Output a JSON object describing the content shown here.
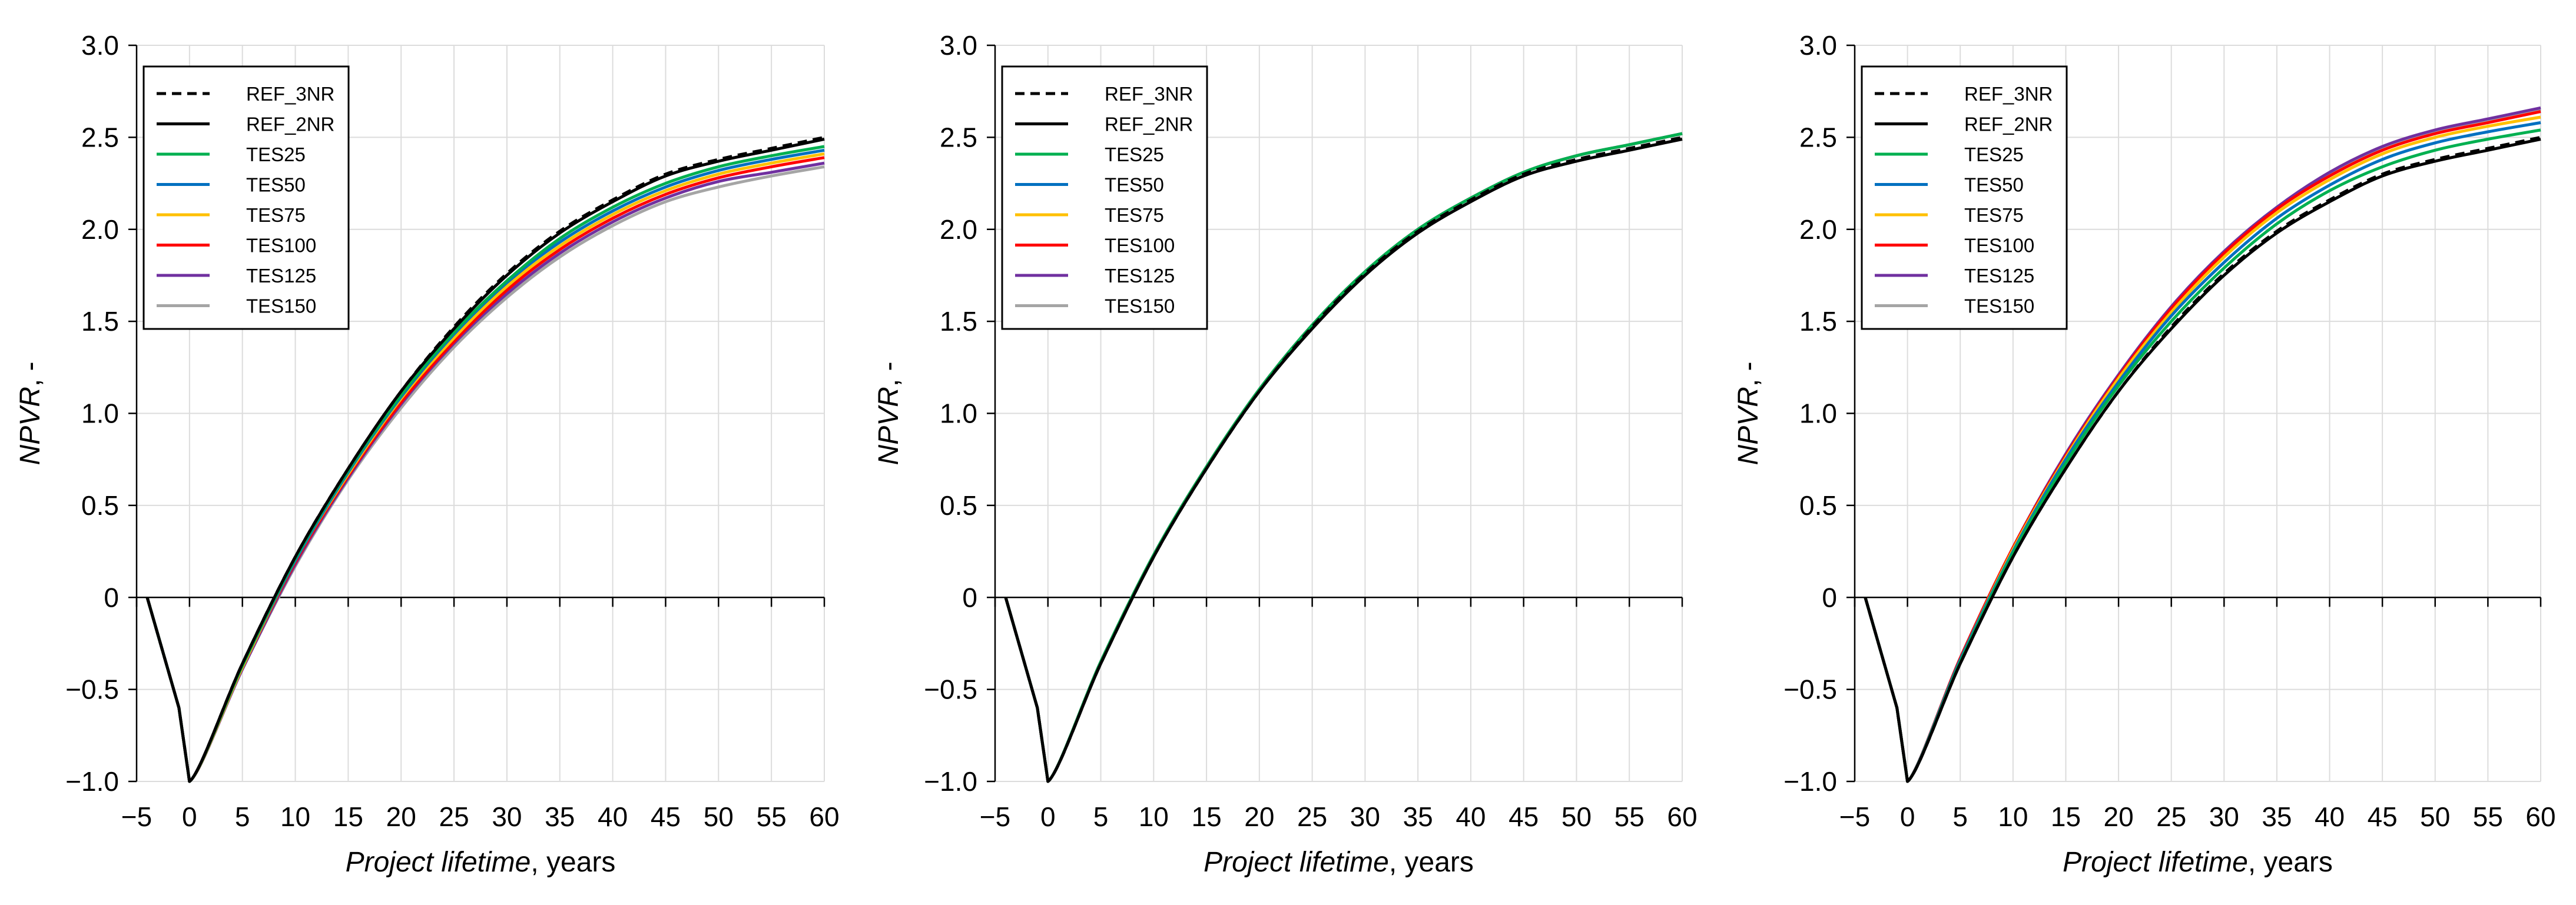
{
  "chart_data": [
    {
      "type": "line",
      "title": "",
      "xlabel": "Project lifetime, years",
      "xlabel_italic": "Project lifetime",
      "xlabel_rest": ", years",
      "ylabel": "NPVR, -",
      "ylabel_italic": "NPVR",
      "ylabel_rest": ", -",
      "xlim": [
        -5,
        60
      ],
      "ylim": [
        -1.0,
        3.0
      ],
      "xticks": [
        -5,
        0,
        5,
        10,
        15,
        20,
        25,
        30,
        35,
        40,
        45,
        50,
        55,
        60
      ],
      "xtick_labels": [
        "−5",
        "0",
        "5",
        "10",
        "15",
        "20",
        "25",
        "30",
        "35",
        "40",
        "45",
        "50",
        "55",
        "60"
      ],
      "yticks": [
        -1.0,
        -0.5,
        0,
        0.5,
        1.0,
        1.5,
        2.0,
        2.5,
        3.0
      ],
      "ytick_labels": [
        "−1.0",
        "−0.5",
        "0",
        "0.5",
        "1.0",
        "1.5",
        "2.0",
        "2.5",
        "3.0"
      ],
      "grid": true,
      "legend_position": "top-left",
      "series": [
        {
          "name": "REF_3NR",
          "color": "#000000",
          "dash": true,
          "x": [
            -4,
            -1,
            0,
            5,
            10,
            15,
            20,
            25,
            30,
            35,
            40,
            45,
            50,
            55,
            60
          ],
          "y": [
            0,
            -0.6,
            -1.0,
            -0.36,
            0.22,
            0.7,
            1.12,
            1.47,
            1.76,
            1.99,
            2.16,
            2.3,
            2.38,
            2.44,
            2.5
          ]
        },
        {
          "name": "REF_2NR",
          "color": "#000000",
          "dash": false,
          "x": [
            -4,
            -1,
            0,
            5,
            10,
            15,
            20,
            25,
            30,
            35,
            40,
            45,
            50,
            55,
            60
          ],
          "y": [
            0,
            -0.6,
            -1.0,
            -0.36,
            0.22,
            0.7,
            1.12,
            1.46,
            1.75,
            1.98,
            2.15,
            2.29,
            2.37,
            2.43,
            2.49
          ]
        },
        {
          "name": "TES25",
          "color": "#00b050",
          "dash": false,
          "x": [
            -4,
            -1,
            0,
            5,
            10,
            15,
            20,
            25,
            30,
            35,
            40,
            45,
            50,
            55,
            60
          ],
          "y": [
            0,
            -0.6,
            -1.0,
            -0.37,
            0.21,
            0.69,
            1.1,
            1.44,
            1.72,
            1.95,
            2.12,
            2.25,
            2.34,
            2.4,
            2.45
          ]
        },
        {
          "name": "TES50",
          "color": "#0070c0",
          "dash": false,
          "x": [
            -4,
            -1,
            0,
            5,
            10,
            15,
            20,
            25,
            30,
            35,
            40,
            45,
            50,
            55,
            60
          ],
          "y": [
            0,
            -0.6,
            -1.0,
            -0.37,
            0.2,
            0.68,
            1.09,
            1.43,
            1.71,
            1.93,
            2.1,
            2.23,
            2.32,
            2.38,
            2.43
          ]
        },
        {
          "name": "TES75",
          "color": "#ffc000",
          "dash": false,
          "x": [
            -4,
            -1,
            0,
            5,
            10,
            15,
            20,
            25,
            30,
            35,
            40,
            45,
            50,
            55,
            60
          ],
          "y": [
            0,
            -0.6,
            -1.0,
            -0.38,
            0.2,
            0.67,
            1.08,
            1.41,
            1.69,
            1.91,
            2.08,
            2.21,
            2.3,
            2.36,
            2.41
          ]
        },
        {
          "name": "TES100",
          "color": "#ff0000",
          "dash": false,
          "x": [
            -4,
            -1,
            0,
            5,
            10,
            15,
            20,
            25,
            30,
            35,
            40,
            45,
            50,
            55,
            60
          ],
          "y": [
            0,
            -0.6,
            -1.0,
            -0.38,
            0.19,
            0.66,
            1.06,
            1.39,
            1.67,
            1.89,
            2.06,
            2.19,
            2.28,
            2.34,
            2.39
          ]
        },
        {
          "name": "TES125",
          "color": "#7030a0",
          "dash": false,
          "x": [
            -4,
            -1,
            0,
            5,
            10,
            15,
            20,
            25,
            30,
            35,
            40,
            45,
            50,
            55,
            60
          ],
          "y": [
            0,
            -0.6,
            -1.0,
            -0.39,
            0.18,
            0.65,
            1.05,
            1.38,
            1.65,
            1.87,
            2.04,
            2.17,
            2.26,
            2.31,
            2.36
          ]
        },
        {
          "name": "TES150",
          "color": "#a5a5a5",
          "dash": false,
          "x": [
            -4,
            -1,
            0,
            5,
            10,
            15,
            20,
            25,
            30,
            35,
            40,
            45,
            50,
            55,
            60
          ],
          "y": [
            0,
            -0.6,
            -1.0,
            -0.39,
            0.17,
            0.64,
            1.03,
            1.36,
            1.63,
            1.85,
            2.02,
            2.15,
            2.23,
            2.29,
            2.34
          ]
        }
      ]
    },
    {
      "type": "line",
      "title": "",
      "xlabel": "Project lifetime, years",
      "xlabel_italic": "Project lifetime",
      "xlabel_rest": ", years",
      "ylabel": "NPVR, -",
      "ylabel_italic": "NPVR",
      "ylabel_rest": ", -",
      "xlim": [
        -5,
        60
      ],
      "ylim": [
        -1.0,
        3.0
      ],
      "xticks": [
        -5,
        0,
        5,
        10,
        15,
        20,
        25,
        30,
        35,
        40,
        45,
        50,
        55,
        60
      ],
      "xtick_labels": [
        "−5",
        "0",
        "5",
        "10",
        "15",
        "20",
        "25",
        "30",
        "35",
        "40",
        "45",
        "50",
        "55",
        "60"
      ],
      "yticks": [
        -1.0,
        -0.5,
        0,
        0.5,
        1.0,
        1.5,
        2.0,
        2.5,
        3.0
      ],
      "ytick_labels": [
        "−1.0",
        "−0.5",
        "0",
        "0.5",
        "1.0",
        "1.5",
        "2.0",
        "2.5",
        "3.0"
      ],
      "grid": true,
      "legend_position": "top-left",
      "series": [
        {
          "name": "REF_3NR",
          "color": "#000000",
          "dash": true,
          "x": [
            -4,
            -1,
            0,
            5,
            10,
            15,
            20,
            25,
            30,
            35,
            40,
            45,
            50,
            55,
            60
          ],
          "y": [
            0,
            -0.6,
            -1.0,
            -0.36,
            0.22,
            0.7,
            1.12,
            1.47,
            1.76,
            1.99,
            2.16,
            2.3,
            2.38,
            2.44,
            2.5
          ]
        },
        {
          "name": "REF_2NR",
          "color": "#000000",
          "dash": false,
          "x": [
            -4,
            -1,
            0,
            5,
            10,
            15,
            20,
            25,
            30,
            35,
            40,
            45,
            50,
            55,
            60
          ],
          "y": [
            0,
            -0.6,
            -1.0,
            -0.36,
            0.22,
            0.7,
            1.12,
            1.46,
            1.75,
            1.98,
            2.15,
            2.29,
            2.37,
            2.43,
            2.49
          ]
        },
        {
          "name": "TES25",
          "color": "#00b050",
          "dash": false,
          "x": [
            -4,
            -1,
            0,
            5,
            10,
            15,
            20,
            25,
            30,
            35,
            40,
            45,
            50,
            55,
            60
          ],
          "y": [
            0,
            -0.6,
            -1.0,
            -0.35,
            0.23,
            0.71,
            1.13,
            1.48,
            1.77,
            2.0,
            2.17,
            2.31,
            2.4,
            2.46,
            2.52
          ]
        },
        {
          "name": "TES50",
          "color": "#0070c0",
          "dash": false,
          "x": [
            -4,
            -1,
            0,
            5,
            10,
            15,
            20,
            25,
            30,
            35,
            40,
            45,
            50,
            55,
            60
          ],
          "y": [
            0,
            -0.6,
            -1.0,
            -0.35,
            0.23,
            0.71,
            1.13,
            1.48,
            1.77,
            2.0,
            2.17,
            2.31,
            2.4,
            2.46,
            2.52
          ]
        },
        {
          "name": "TES75",
          "color": "#ffc000",
          "dash": false,
          "x": [
            -4,
            -1,
            0,
            5,
            10,
            15,
            20,
            25,
            30,
            35,
            40,
            45,
            50,
            55,
            60
          ],
          "y": [
            0,
            -0.6,
            -1.0,
            -0.35,
            0.23,
            0.71,
            1.13,
            1.48,
            1.77,
            2.0,
            2.17,
            2.31,
            2.4,
            2.46,
            2.52
          ]
        },
        {
          "name": "TES100",
          "color": "#ff0000",
          "dash": false,
          "x": [
            -4,
            -1,
            0,
            5,
            10,
            15,
            20,
            25,
            30,
            35,
            40,
            45,
            50,
            55,
            60
          ],
          "y": [
            0,
            -0.6,
            -1.0,
            -0.35,
            0.23,
            0.71,
            1.13,
            1.48,
            1.77,
            2.0,
            2.17,
            2.31,
            2.4,
            2.46,
            2.52
          ]
        },
        {
          "name": "TES125",
          "color": "#7030a0",
          "dash": false,
          "x": [
            -4,
            -1,
            0,
            5,
            10,
            15,
            20,
            25,
            30,
            35,
            40,
            45,
            50,
            55,
            60
          ],
          "y": [
            0,
            -0.6,
            -1.0,
            -0.35,
            0.23,
            0.71,
            1.13,
            1.48,
            1.77,
            2.0,
            2.17,
            2.31,
            2.4,
            2.46,
            2.52
          ]
        },
        {
          "name": "TES150",
          "color": "#a5a5a5",
          "dash": false,
          "x": [
            -4,
            -1,
            0,
            5,
            10,
            15,
            20,
            25,
            30,
            35,
            40,
            45,
            50,
            55,
            60
          ],
          "y": [
            0,
            -0.6,
            -1.0,
            -0.35,
            0.23,
            0.71,
            1.13,
            1.48,
            1.77,
            2.0,
            2.17,
            2.31,
            2.4,
            2.46,
            2.52
          ]
        }
      ]
    },
    {
      "type": "line",
      "title": "",
      "xlabel": "Project lifetime, years",
      "xlabel_italic": "Project lifetime",
      "xlabel_rest": ", years",
      "ylabel": "NPVR, -",
      "ylabel_italic": "NPVR",
      "ylabel_rest": ", -",
      "xlim": [
        -5,
        60
      ],
      "ylim": [
        -1.0,
        3.0
      ],
      "xticks": [
        -5,
        0,
        5,
        10,
        15,
        20,
        25,
        30,
        35,
        40,
        45,
        50,
        55,
        60
      ],
      "xtick_labels": [
        "−5",
        "0",
        "5",
        "10",
        "15",
        "20",
        "25",
        "30",
        "35",
        "40",
        "45",
        "50",
        "55",
        "60"
      ],
      "yticks": [
        -1.0,
        -0.5,
        0,
        0.5,
        1.0,
        1.5,
        2.0,
        2.5,
        3.0
      ],
      "ytick_labels": [
        "−1.0",
        "−0.5",
        "0",
        "0.5",
        "1.0",
        "1.5",
        "2.0",
        "2.5",
        "3.0"
      ],
      "grid": true,
      "legend_position": "top-left",
      "series": [
        {
          "name": "REF_3NR",
          "color": "#000000",
          "dash": true,
          "x": [
            -4,
            -1,
            0,
            5,
            10,
            15,
            20,
            25,
            30,
            35,
            40,
            45,
            50,
            55,
            60
          ],
          "y": [
            0,
            -0.6,
            -1.0,
            -0.36,
            0.22,
            0.7,
            1.12,
            1.47,
            1.76,
            1.99,
            2.16,
            2.3,
            2.38,
            2.44,
            2.5
          ]
        },
        {
          "name": "REF_2NR",
          "color": "#000000",
          "dash": false,
          "x": [
            -4,
            -1,
            0,
            5,
            10,
            15,
            20,
            25,
            30,
            35,
            40,
            45,
            50,
            55,
            60
          ],
          "y": [
            0,
            -0.6,
            -1.0,
            -0.36,
            0.22,
            0.7,
            1.12,
            1.46,
            1.75,
            1.98,
            2.15,
            2.29,
            2.37,
            2.43,
            2.49
          ]
        },
        {
          "name": "TES25",
          "color": "#00b050",
          "dash": false,
          "x": [
            -4,
            -1,
            0,
            5,
            10,
            15,
            20,
            25,
            30,
            35,
            40,
            45,
            50,
            55,
            60
          ],
          "y": [
            0,
            -0.6,
            -1.0,
            -0.35,
            0.24,
            0.73,
            1.15,
            1.5,
            1.79,
            2.03,
            2.21,
            2.34,
            2.43,
            2.49,
            2.54
          ]
        },
        {
          "name": "TES50",
          "color": "#0070c0",
          "dash": false,
          "x": [
            -4,
            -1,
            0,
            5,
            10,
            15,
            20,
            25,
            30,
            35,
            40,
            45,
            50,
            55,
            60
          ],
          "y": [
            0,
            -0.6,
            -1.0,
            -0.34,
            0.25,
            0.75,
            1.17,
            1.53,
            1.82,
            2.06,
            2.24,
            2.38,
            2.47,
            2.53,
            2.58
          ]
        },
        {
          "name": "TES75",
          "color": "#ffc000",
          "dash": false,
          "x": [
            -4,
            -1,
            0,
            5,
            10,
            15,
            20,
            25,
            30,
            35,
            40,
            45,
            50,
            55,
            60
          ],
          "y": [
            0,
            -0.6,
            -1.0,
            -0.34,
            0.26,
            0.76,
            1.19,
            1.55,
            1.85,
            2.09,
            2.27,
            2.41,
            2.5,
            2.56,
            2.61
          ]
        },
        {
          "name": "TES100",
          "color": "#ff0000",
          "dash": false,
          "x": [
            -4,
            -1,
            0,
            5,
            10,
            15,
            20,
            25,
            30,
            35,
            40,
            45,
            50,
            55,
            60
          ],
          "y": [
            0,
            -0.6,
            -1.0,
            -0.33,
            0.27,
            0.77,
            1.2,
            1.57,
            1.87,
            2.11,
            2.29,
            2.43,
            2.52,
            2.58,
            2.64
          ]
        },
        {
          "name": "TES125",
          "color": "#7030a0",
          "dash": false,
          "x": [
            -4,
            -1,
            0,
            5,
            10,
            15,
            20,
            25,
            30,
            35,
            40,
            45,
            50,
            55,
            60
          ],
          "y": [
            0,
            -0.6,
            -1.0,
            -0.33,
            0.27,
            0.78,
            1.21,
            1.58,
            1.88,
            2.12,
            2.31,
            2.45,
            2.54,
            2.6,
            2.66
          ]
        },
        {
          "name": "TES150",
          "color": "#a5a5a5",
          "dash": false,
          "x": [
            -4,
            -1,
            0,
            5,
            10,
            15,
            20,
            25,
            30,
            35,
            40,
            45,
            50,
            55,
            60
          ],
          "y": [
            0,
            -0.6,
            -1.0,
            -0.33,
            0.27,
            0.78,
            1.21,
            1.58,
            1.88,
            2.12,
            2.3,
            2.44,
            2.53,
            2.59,
            2.65
          ]
        }
      ]
    }
  ]
}
